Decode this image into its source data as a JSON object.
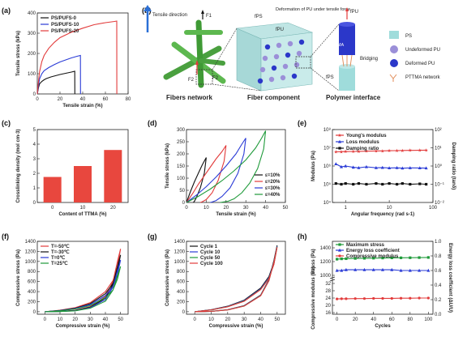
{
  "panel_labels": {
    "a": "(a)",
    "b": "(b)",
    "c": "(c)",
    "d": "(d)",
    "e": "(e)",
    "f": "(f)",
    "g": "(g)",
    "h": "(h)"
  },
  "diagram_b": {
    "tensile_direction": "Tensile direction",
    "force_1": "F1",
    "force_2": "F2",
    "force_2b": "F2",
    "fps_label": "fPS",
    "fpu_label": "fPU",
    "deformation_note": "Deformation of PU under tensile force",
    "fiber_network": "Fibers network",
    "fiber_component": "Fiber component",
    "polymer_interface": "Polymer interface",
    "bridging": "Bridging",
    "fpttma_label": "fPTTMA",
    "fpu_top": "fPU",
    "fps_bottom": "fPS",
    "legend": [
      {
        "name": "PS",
        "color": "#9fdcdb"
      },
      {
        "name": "Undeformed PU",
        "color": "#9b8fd8"
      },
      {
        "name": "Deformed PU",
        "color": "#2b37c9"
      },
      {
        "name": "PTTMA network",
        "color": "#e08a56"
      }
    ]
  },
  "chart_data": [
    {
      "id": "a",
      "type": "line",
      "xlabel": "Tensile strain (%)",
      "ylabel": "Tensile stress (kPa)",
      "xlim": [
        0,
        80
      ],
      "ylim": [
        0,
        400
      ],
      "xticks": [
        0,
        20,
        40,
        60,
        80
      ],
      "yticks": [
        0,
        100,
        200,
        300,
        400
      ],
      "legend_position": "top-left",
      "series": [
        {
          "name": "PS/PUFS-0",
          "color": "#111111",
          "x": [
            0,
            1,
            2,
            4,
            6,
            8,
            12,
            16,
            20,
            25,
            30,
            33,
            33.1
          ],
          "y": [
            0,
            30,
            50,
            62,
            70,
            76,
            84,
            90,
            96,
            102,
            108,
            112,
            0
          ]
        },
        {
          "name": "PS/PUFS-10",
          "color": "#2a3bd6",
          "x": [
            0,
            1,
            2,
            4,
            6,
            10,
            15,
            20,
            25,
            30,
            35,
            38,
            38.1
          ],
          "y": [
            0,
            40,
            75,
            100,
            115,
            130,
            145,
            158,
            168,
            178,
            186,
            190,
            0
          ]
        },
        {
          "name": "PS/PUFS-20",
          "color": "#e23b3b",
          "x": [
            0,
            1,
            2,
            4,
            6,
            10,
            15,
            20,
            30,
            40,
            50,
            60,
            68,
            70,
            70.1
          ],
          "y": [
            0,
            60,
            110,
            160,
            190,
            225,
            255,
            278,
            305,
            325,
            342,
            352,
            358,
            360,
            0
          ]
        }
      ]
    },
    {
      "id": "c",
      "type": "bar",
      "xlabel": "Content of TTMA (%)",
      "ylabel": "Crosslinking density (mol cm-3)",
      "categories": [
        "0",
        "10",
        "20"
      ],
      "values": [
        1.75,
        2.5,
        3.6
      ],
      "ylim": [
        0,
        5
      ],
      "yticks": [
        0,
        1,
        2,
        3,
        4,
        5
      ],
      "color": "#e8473e"
    },
    {
      "id": "d",
      "type": "line",
      "xlabel": "Tensile strain (%)",
      "ylabel": "Tensile stress (kPa)",
      "xlim": [
        0,
        50
      ],
      "ylim": [
        0,
        300
      ],
      "xticks": [
        0,
        10,
        20,
        30,
        40,
        50
      ],
      "yticks": [
        0,
        50,
        100,
        150,
        200,
        250,
        300
      ],
      "legend_position": "lower-right",
      "series": [
        {
          "name": "ε=10%",
          "color": "#111111",
          "x": [
            0,
            2,
            4,
            6,
            8,
            10,
            9,
            7,
            5,
            4,
            3.5
          ],
          "y": [
            0,
            45,
            85,
            120,
            155,
            185,
            120,
            60,
            20,
            5,
            0
          ]
        },
        {
          "name": "ε=20%",
          "color": "#e23b3b",
          "x": [
            0,
            3,
            6,
            9,
            12,
            15,
            18,
            20,
            19,
            16,
            13,
            10,
            8,
            7
          ],
          "y": [
            0,
            35,
            75,
            110,
            145,
            180,
            210,
            235,
            170,
            90,
            40,
            12,
            3,
            0
          ]
        },
        {
          "name": "ε=30%",
          "color": "#2a3bd6",
          "x": [
            0,
            5,
            10,
            15,
            20,
            25,
            28,
            30,
            29,
            26,
            22,
            18,
            15,
            13,
            12
          ],
          "y": [
            0,
            30,
            65,
            105,
            150,
            200,
            240,
            265,
            200,
            120,
            60,
            25,
            8,
            2,
            0
          ]
        },
        {
          "name": "ε=40%",
          "color": "#1f9a3a",
          "x": [
            0,
            6,
            12,
            18,
            24,
            30,
            35,
            38,
            40,
            39,
            36,
            32,
            28,
            24,
            21,
            18,
            17
          ],
          "y": [
            0,
            25,
            55,
            90,
            130,
            175,
            225,
            265,
            295,
            220,
            140,
            80,
            40,
            15,
            5,
            1,
            0
          ]
        }
      ]
    },
    {
      "id": "e",
      "type": "line",
      "xlabel": "Angular frequency (rad s-1)",
      "ylabel": "Modulus (Pa)",
      "ylabel2": "Damping ratio (tanδ)",
      "xscale": "log",
      "yscale": "log",
      "xlim": [
        0.5,
        100
      ],
      "ylim": [
        10000,
        100000000
      ],
      "ylim2": [
        0.01,
        100
      ],
      "xticks": [
        1,
        10,
        100
      ],
      "xticklabels": [
        "1",
        "10",
        "100"
      ],
      "yticks": [
        10000,
        100000,
        1000000,
        10000000,
        100000000
      ],
      "yticklabels": [
        "10⁴",
        "10⁵",
        "10⁶",
        "10⁷",
        "10⁸"
      ],
      "yticks2": [
        0.01,
        0.1,
        1,
        10,
        100
      ],
      "yticklabels2": [
        "10⁻²",
        "10⁻¹",
        "10⁰",
        "10¹",
        "10²"
      ],
      "legend_position": "top-left",
      "series": [
        {
          "name": "Young's modulus",
          "color": "#e23b3b",
          "marker": "star",
          "x": [
            0.6,
            0.8,
            1,
            1.5,
            2,
            3,
            5,
            7,
            10,
            15,
            20,
            30,
            50,
            70
          ],
          "y": [
            6000000,
            6100000,
            6200000,
            6300000,
            6400000,
            6500000,
            6700000,
            6800000,
            6900000,
            7000000,
            7100000,
            7200000,
            7300000,
            7400000
          ]
        },
        {
          "name": "Loss modulus",
          "color": "#2a3bd6",
          "marker": "triangle",
          "x": [
            0.6,
            0.8,
            1,
            1.5,
            2,
            3,
            5,
            7,
            10,
            15,
            20,
            30,
            50,
            70
          ],
          "y": [
            1300000,
            900000,
            1000000,
            850000,
            800000,
            900000,
            800000,
            820000,
            780000,
            800000,
            760000,
            790000,
            780000,
            770000
          ]
        },
        {
          "name": "Damping ratio",
          "color": "#111111",
          "marker": "square",
          "axis": "right",
          "x": [
            0.6,
            0.8,
            1,
            1.5,
            2,
            3,
            5,
            7,
            10,
            15,
            20,
            30,
            50,
            70
          ],
          "y": [
            0.11,
            0.1,
            0.11,
            0.1,
            0.11,
            0.1,
            0.11,
            0.1,
            0.11,
            0.1,
            0.11,
            0.1,
            0.105,
            0.1
          ]
        }
      ]
    },
    {
      "id": "f",
      "type": "line",
      "xlabel": "Compressive strain (%)",
      "ylabel": "Compressive stress (Pa)",
      "xlim": [
        -5,
        55
      ],
      "ylim": [
        -50,
        1400
      ],
      "xticks": [
        0,
        10,
        20,
        30,
        40,
        50
      ],
      "yticks": [
        0,
        200,
        400,
        600,
        800,
        1000,
        1200,
        1400
      ],
      "legend_position": "top-left",
      "series": [
        {
          "name": "T=-50℃",
          "color": "#e23b3b",
          "x": [
            0,
            10,
            20,
            30,
            40,
            45,
            48,
            50,
            48,
            45,
            40,
            30,
            20,
            10,
            0
          ],
          "y": [
            0,
            30,
            80,
            180,
            400,
            620,
            900,
            1250,
            1000,
            600,
            300,
            100,
            30,
            5,
            0
          ]
        },
        {
          "name": "T=-30℃",
          "color": "#111111",
          "x": [
            0,
            10,
            20,
            30,
            40,
            45,
            48,
            50,
            48,
            45,
            40,
            30,
            20,
            10,
            0
          ],
          "y": [
            0,
            25,
            70,
            160,
            360,
            560,
            820,
            1130,
            900,
            540,
            270,
            90,
            25,
            5,
            0
          ]
        },
        {
          "name": "T=0℃",
          "color": "#2a3bd6",
          "x": [
            0,
            10,
            20,
            30,
            40,
            45,
            48,
            50,
            48,
            45,
            40,
            30,
            20,
            10,
            0
          ],
          "y": [
            0,
            22,
            62,
            140,
            320,
            500,
            740,
            1030,
            820,
            490,
            240,
            80,
            20,
            4,
            0
          ]
        },
        {
          "name": "T=25℃",
          "color": "#1f9a3a",
          "x": [
            0,
            10,
            20,
            30,
            40,
            45,
            48,
            50,
            48,
            45,
            40,
            30,
            20,
            10,
            0
          ],
          "y": [
            0,
            18,
            55,
            120,
            280,
            430,
            650,
            900,
            720,
            430,
            210,
            70,
            18,
            3,
            0
          ]
        }
      ]
    },
    {
      "id": "g",
      "type": "line",
      "xlabel": "Compressive strain (%)",
      "ylabel": "Compressive stress (Pa)",
      "xlim": [
        -5,
        55
      ],
      "ylim": [
        -50,
        1400
      ],
      "xticks": [
        0,
        10,
        20,
        30,
        40,
        50
      ],
      "yticks": [
        0,
        200,
        400,
        600,
        800,
        1000,
        1200,
        1400
      ],
      "legend_position": "top-left",
      "series": [
        {
          "name": "Cycle 1",
          "color": "#111111",
          "x": [
            0,
            10,
            20,
            30,
            40,
            45,
            48,
            50,
            48,
            45,
            40,
            30,
            20,
            10,
            0
          ],
          "y": [
            0,
            40,
            110,
            230,
            470,
            700,
            980,
            1320,
            1020,
            640,
            330,
            120,
            40,
            8,
            0
          ]
        },
        {
          "name": "Cycle 10",
          "color": "#2a3bd6",
          "x": [
            0,
            10,
            20,
            30,
            40,
            45,
            48,
            50,
            48,
            45,
            40,
            30,
            20,
            10,
            0
          ],
          "y": [
            0,
            38,
            105,
            220,
            455,
            680,
            960,
            1300,
            1000,
            630,
            325,
            118,
            38,
            7,
            0
          ]
        },
        {
          "name": "Cycle 50",
          "color": "#1f9a3a",
          "x": [
            0,
            10,
            20,
            30,
            40,
            45,
            48,
            50,
            48,
            45,
            40,
            30,
            20,
            10,
            0
          ],
          "y": [
            0,
            36,
            100,
            212,
            445,
            665,
            945,
            1290,
            990,
            620,
            320,
            115,
            36,
            6,
            0
          ]
        },
        {
          "name": "Cycle 100",
          "color": "#e23b3b",
          "x": [
            0,
            10,
            20,
            30,
            40,
            45,
            48,
            50,
            48,
            45,
            40,
            30,
            20,
            10,
            0
          ],
          "y": [
            0,
            35,
            98,
            208,
            440,
            660,
            940,
            1285,
            985,
            615,
            318,
            112,
            35,
            6,
            0
          ]
        }
      ]
    },
    {
      "id": "h",
      "type": "line",
      "xlabel": "Cycles",
      "ylabel_top": "Stress (Pa)",
      "ylabel_bottom": "Compressive modulus (Pa)",
      "ylabel2": "Energy loss coefficient (ΔU/U)",
      "xlim": [
        -5,
        105
      ],
      "xticks": [
        0,
        20,
        40,
        60,
        80,
        100
      ],
      "yticks_top": [
        1000,
        1200,
        1400
      ],
      "yticks_bottom": [
        16,
        20,
        24,
        28,
        32
      ],
      "yticks2": [
        0,
        0.2,
        0.4,
        0.6,
        0.8,
        1.0
      ],
      "yticklabels2": [
        "0.0",
        "0.2",
        "0.4",
        "0.6",
        "0.8",
        "1.0"
      ],
      "legend_position": "top-left",
      "series": [
        {
          "name": "Maximum stress",
          "color": "#1f9a3a",
          "marker": "square",
          "axis": "top",
          "x": [
            0,
            5,
            10,
            20,
            30,
            40,
            50,
            60,
            70,
            80,
            90,
            100
          ],
          "y": [
            1235,
            1240,
            1242,
            1246,
            1248,
            1250,
            1252,
            1254,
            1255,
            1256,
            1258,
            1260
          ]
        },
        {
          "name": "Energy loss coefficient",
          "color": "#2a3bd6",
          "marker": "triangle",
          "axis": "right",
          "x": [
            0,
            5,
            10,
            20,
            30,
            40,
            50,
            60,
            70,
            80,
            90,
            100
          ],
          "y": [
            0.6,
            0.6,
            0.61,
            0.61,
            0.61,
            0.61,
            0.61,
            0.61,
            0.6,
            0.6,
            0.6,
            0.6
          ]
        },
        {
          "name": "Compressive modulus",
          "color": "#e23b3b",
          "marker": "circle",
          "axis": "bottom",
          "x": [
            0,
            5,
            10,
            20,
            30,
            40,
            50,
            60,
            70,
            80,
            90,
            100
          ],
          "y": [
            23.5,
            23.6,
            23.6,
            23.7,
            23.7,
            23.8,
            23.8,
            23.8,
            23.9,
            23.9,
            24.0,
            24.0
          ]
        }
      ]
    }
  ]
}
